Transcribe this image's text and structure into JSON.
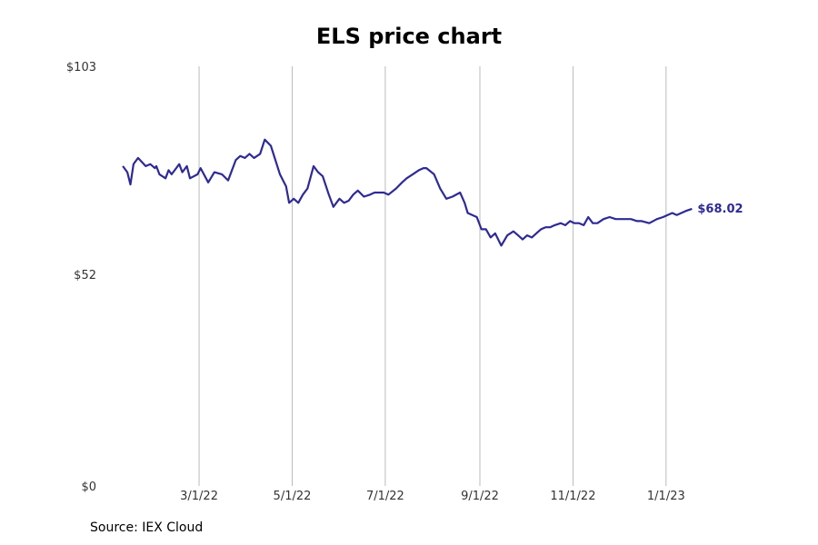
{
  "chart_data": {
    "type": "line",
    "title": "ELS price chart",
    "xlabel": "",
    "ylabel": "",
    "source": "Source: IEX Cloud",
    "ylim": [
      0,
      103
    ],
    "yticks": [
      0,
      52,
      103
    ],
    "ytick_labels": [
      "$0",
      "$52",
      "$103"
    ],
    "xlim": [
      "2022-01-01",
      "2023-02-10"
    ],
    "xticks": [
      "2022-03-01",
      "2022-05-01",
      "2022-07-01",
      "2022-09-01",
      "2022-11-01",
      "2023-01-01"
    ],
    "xtick_labels": [
      "3/1/22",
      "5/1/22",
      "7/1/22",
      "9/1/22",
      "11/1/22",
      "1/1/23"
    ],
    "grid": "vertical",
    "colors": {
      "line": "#2e2a94",
      "grid": "#bbbbbb",
      "text": "#333333"
    },
    "last_label": "$68.02",
    "series": [
      {
        "x": [
          "2022-01-10",
          "2022-01-13",
          "2022-01-15",
          "2022-01-17",
          "2022-01-18",
          "2022-01-20",
          "2022-01-25",
          "2022-01-28",
          "2022-01-31",
          "2022-02-01",
          "2022-02-03",
          "2022-02-07",
          "2022-02-09",
          "2022-02-11",
          "2022-02-14",
          "2022-02-16",
          "2022-02-18",
          "2022-02-21",
          "2022-02-23",
          "2022-02-28",
          "2022-03-02",
          "2022-03-07",
          "2022-03-11",
          "2022-03-16",
          "2022-03-20",
          "2022-03-25",
          "2022-03-28",
          "2022-03-31",
          "2022-04-03",
          "2022-04-06",
          "2022-04-10",
          "2022-04-13",
          "2022-04-17",
          "2022-04-23",
          "2022-04-25",
          "2022-04-27",
          "2022-04-29",
          "2022-05-02",
          "2022-05-05",
          "2022-05-08",
          "2022-05-11",
          "2022-05-15",
          "2022-05-18",
          "2022-05-21",
          "2022-05-25",
          "2022-05-28",
          "2022-06-01",
          "2022-06-04",
          "2022-06-07",
          "2022-06-10",
          "2022-06-13",
          "2022-06-17",
          "2022-06-21",
          "2022-06-24",
          "2022-06-28",
          "2022-06-30",
          "2022-07-03",
          "2022-07-08",
          "2022-07-12",
          "2022-07-15",
          "2022-07-19",
          "2022-07-23",
          "2022-07-26",
          "2022-07-28",
          "2022-08-02",
          "2022-08-06",
          "2022-08-10",
          "2022-08-14",
          "2022-08-19",
          "2022-08-22",
          "2022-08-24",
          "2022-08-27",
          "2022-08-30",
          "2022-09-02",
          "2022-09-05",
          "2022-09-08",
          "2022-09-11",
          "2022-09-15",
          "2022-09-19",
          "2022-09-23",
          "2022-09-26",
          "2022-09-29",
          "2022-10-02",
          "2022-10-05",
          "2022-10-08",
          "2022-10-11",
          "2022-10-14",
          "2022-10-17",
          "2022-10-20",
          "2022-10-24",
          "2022-10-27",
          "2022-10-30",
          "2022-11-02",
          "2022-11-05",
          "2022-11-08",
          "2022-11-11",
          "2022-11-14",
          "2022-11-17",
          "2022-11-21",
          "2022-11-25",
          "2022-11-29",
          "2022-12-02",
          "2022-12-05",
          "2022-12-09",
          "2022-12-13",
          "2022-12-16",
          "2022-12-21",
          "2022-12-26",
          "2022-12-30",
          "2023-01-02",
          "2023-01-05",
          "2023-01-08",
          "2023-01-11",
          "2023-01-14",
          "2023-01-18"
        ],
        "y": [
          78.5,
          77.0,
          74.0,
          79.0,
          79.5,
          80.5,
          78.5,
          79.0,
          78.0,
          78.5,
          76.5,
          75.5,
          77.5,
          76.5,
          78.0,
          79.0,
          77.0,
          78.5,
          75.5,
          76.5,
          78.0,
          74.5,
          77.0,
          76.5,
          75.0,
          80.0,
          81.0,
          80.5,
          81.5,
          80.5,
          81.5,
          85.0,
          83.5,
          76.5,
          75.0,
          73.5,
          69.5,
          70.5,
          69.5,
          71.5,
          73.0,
          78.5,
          77.0,
          76.0,
          71.5,
          68.5,
          70.5,
          69.5,
          70.0,
          71.5,
          72.5,
          71.0,
          71.5,
          72.0,
          72.0,
          72.0,
          71.5,
          73.0,
          74.5,
          75.5,
          76.5,
          77.5,
          78.0,
          78.0,
          76.5,
          73.0,
          70.5,
          71.0,
          72.0,
          69.5,
          67.0,
          66.5,
          66.0,
          63.0,
          63.0,
          61.0,
          62.0,
          59.0,
          61.5,
          62.5,
          61.5,
          60.5,
          61.5,
          61.0,
          62.0,
          63.0,
          63.5,
          63.5,
          64.0,
          64.5,
          64.0,
          65.0,
          64.5,
          64.5,
          64.0,
          66.0,
          64.5,
          64.5,
          65.5,
          66.0,
          65.5,
          65.5,
          65.5,
          65.5,
          65.0,
          65.0,
          64.5,
          65.5,
          66.0,
          66.5,
          67.0,
          66.5,
          67.0,
          67.5,
          68.02
        ]
      }
    ]
  }
}
